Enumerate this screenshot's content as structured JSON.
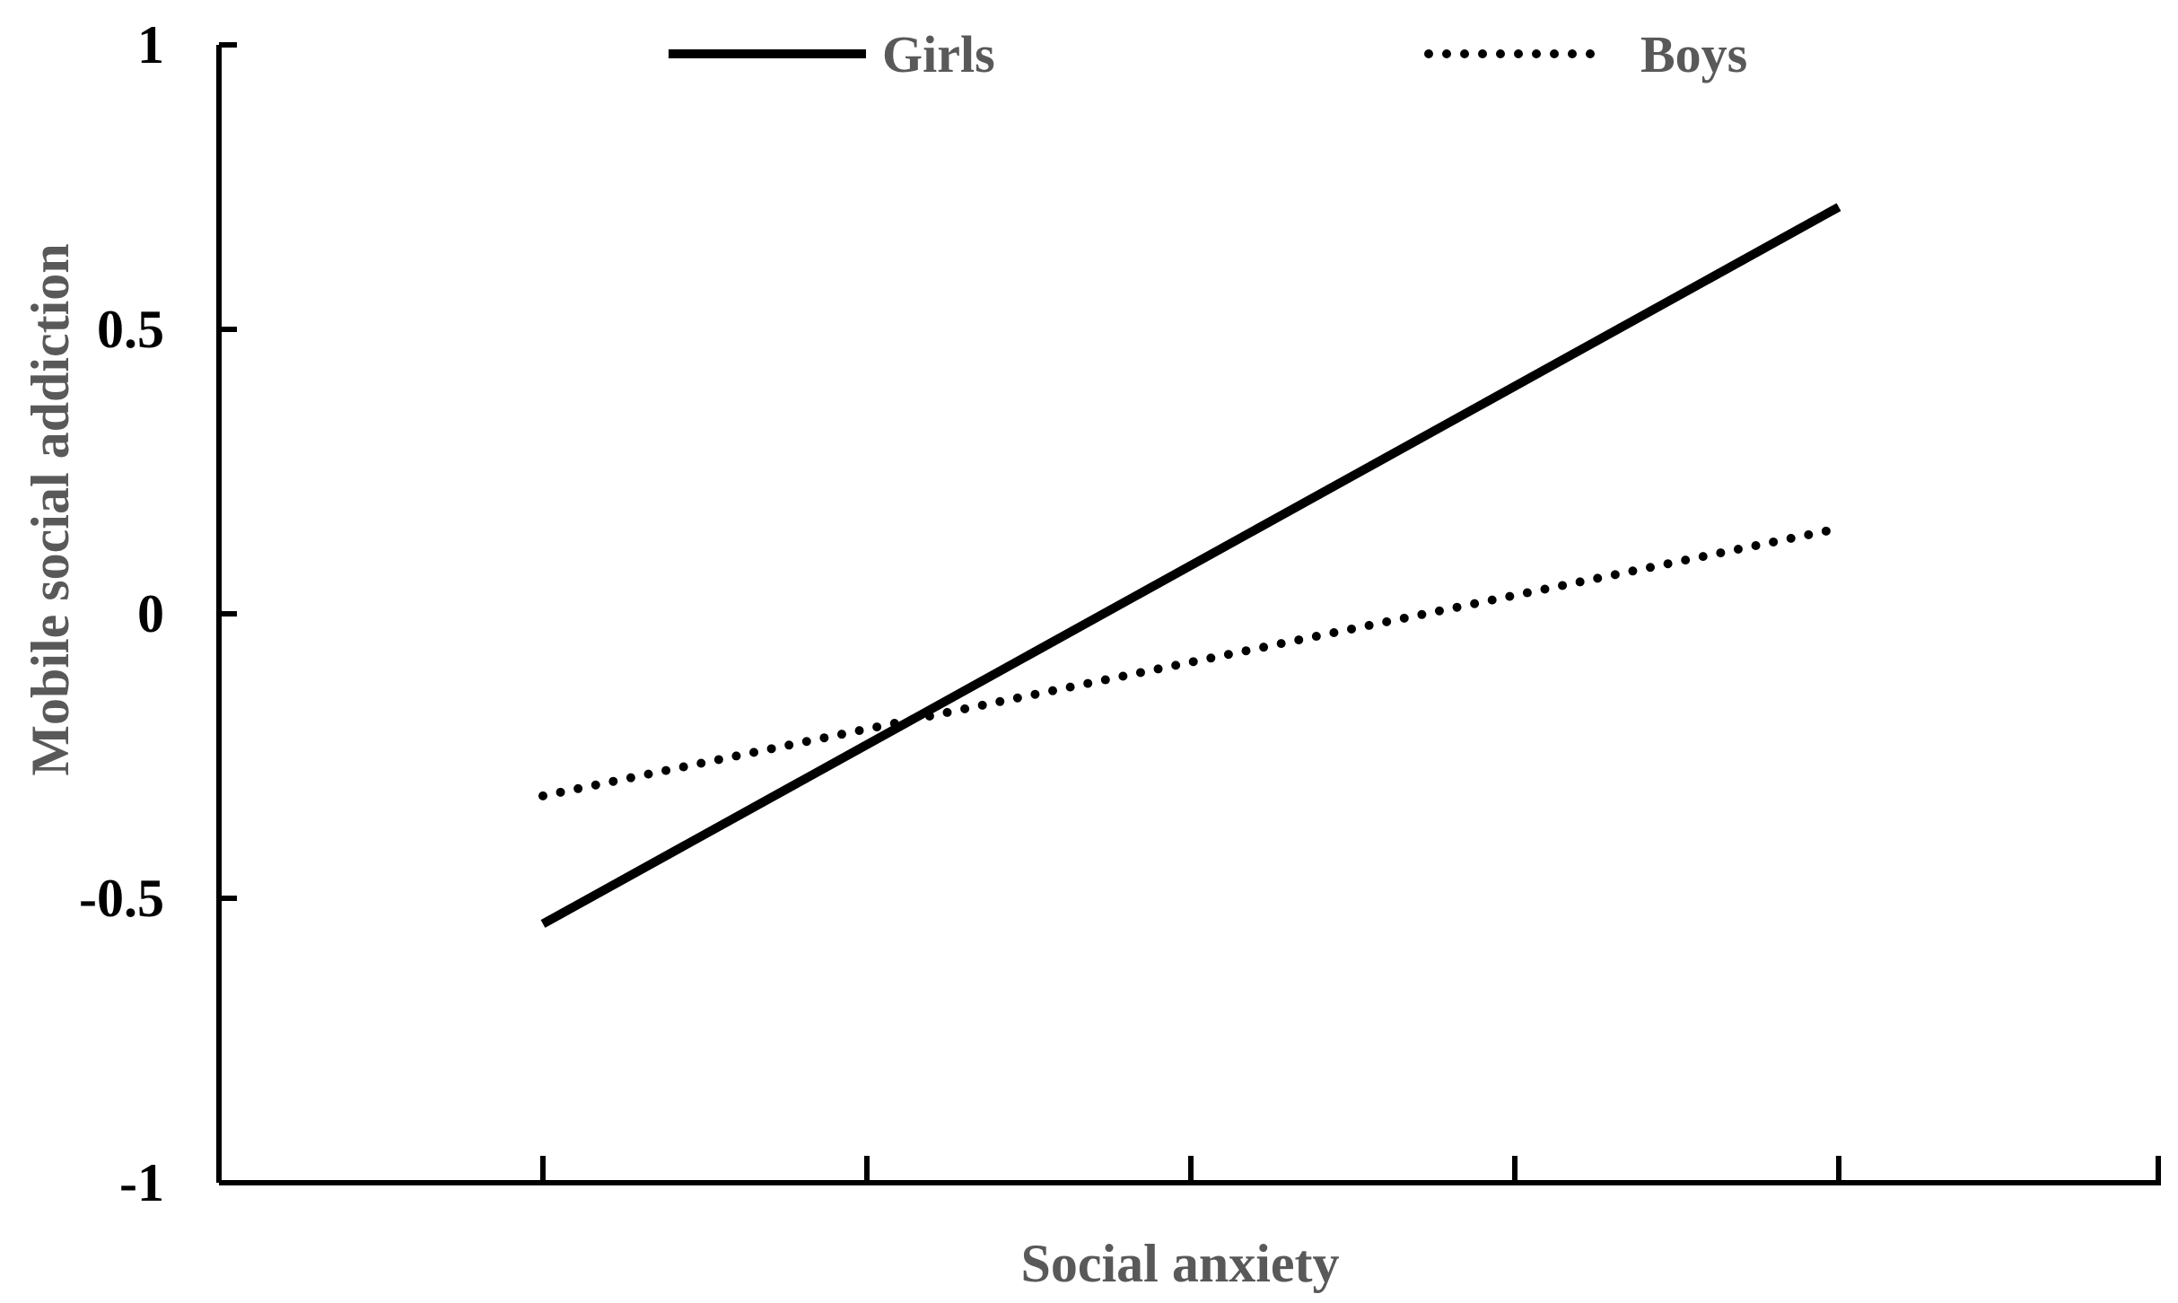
{
  "chart_data": {
    "type": "line",
    "title": "",
    "xlabel": "Social anxiety",
    "ylabel": "Mobile social addiction",
    "ylim": [
      -1,
      1
    ],
    "yticks": [
      1,
      0.5,
      0,
      -0.5,
      -1
    ],
    "ytick_labels": [
      "1",
      "0.5",
      "0",
      "-0.5",
      "-1"
    ],
    "x_tick_count": 6,
    "grid": false,
    "legend_position": "top",
    "series": [
      {
        "name": "Girls",
        "style": "solid",
        "color": "#000000",
        "x": [
          1,
          5
        ],
        "values": [
          -0.545,
          0.715
        ]
      },
      {
        "name": "Boys",
        "style": "dotted",
        "color": "#000000",
        "x": [
          1,
          5
        ],
        "values": [
          -0.32,
          0.15
        ]
      }
    ]
  }
}
